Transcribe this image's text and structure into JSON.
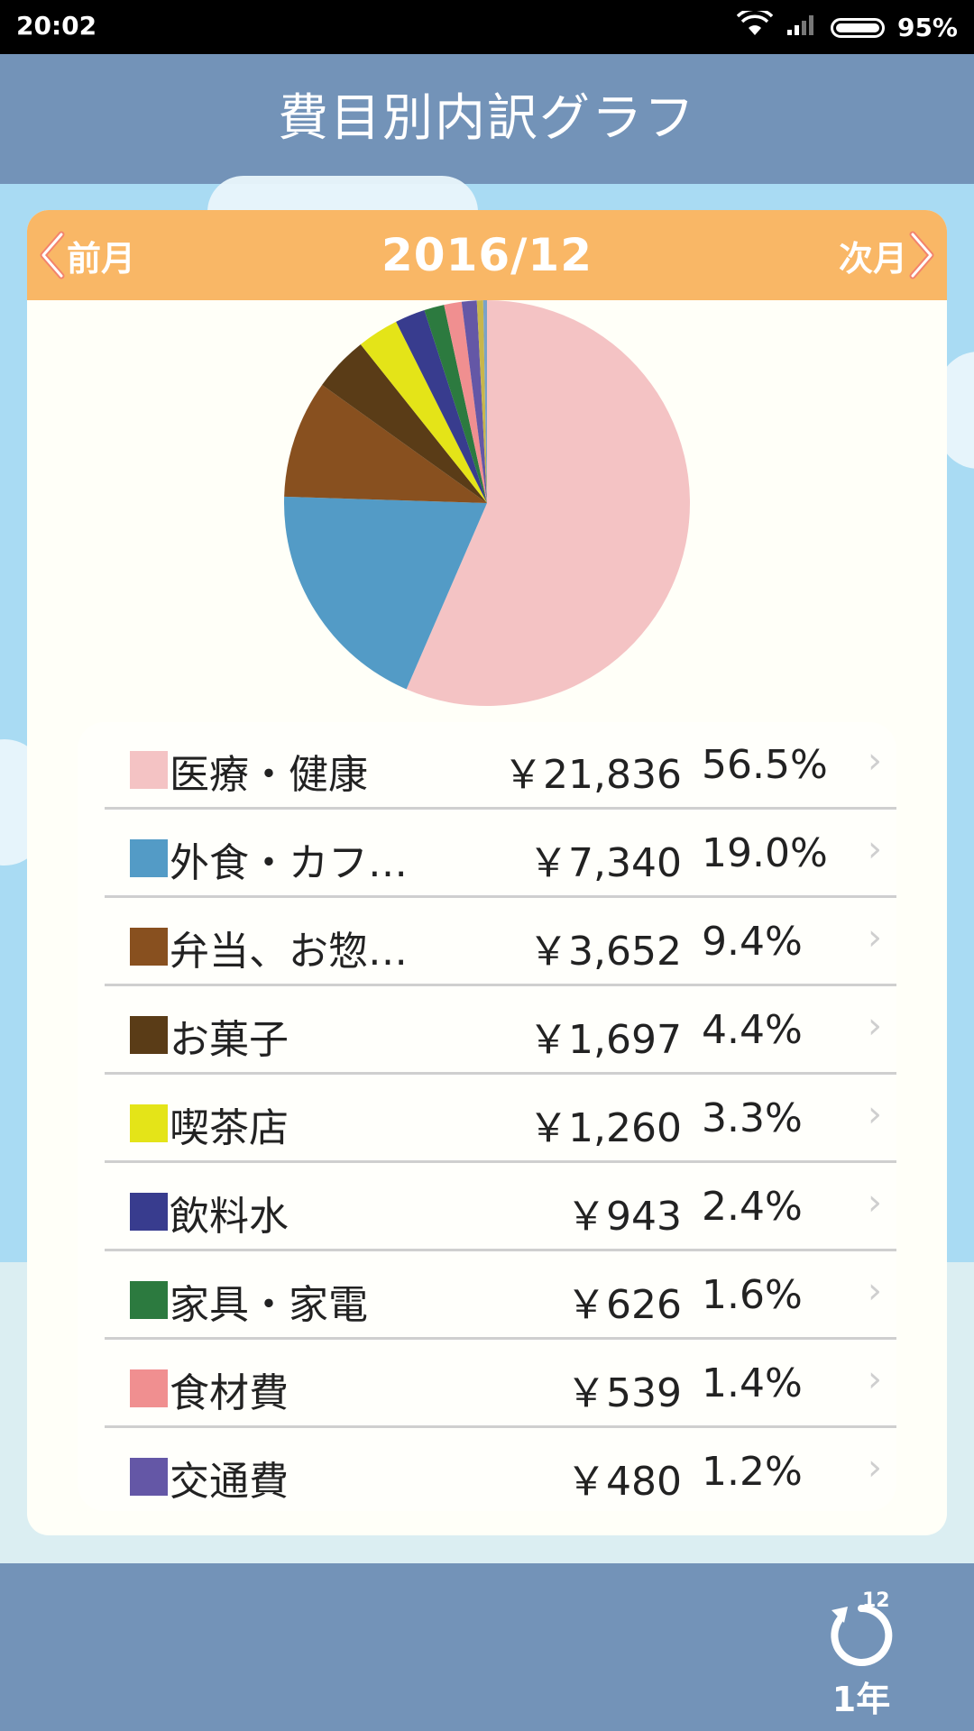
{
  "status": {
    "time": "20:02",
    "battery": "95%"
  },
  "header": {
    "title": "費目別内訳グラフ"
  },
  "nav": {
    "prev_label": "前月",
    "next_label": "次月",
    "current_month": "2016/12"
  },
  "chart_data": {
    "type": "pie",
    "slices": [
      {
        "label": "医療・健康",
        "amount": "￥21,836",
        "percent": 56.5,
        "percent_label": "56.5%",
        "color": "#f4c3c4"
      },
      {
        "label": "外食・カフ…",
        "amount": "￥7,340",
        "percent": 19.0,
        "percent_label": "19.0%",
        "color": "#539bc6"
      },
      {
        "label": "弁当、お惣…",
        "amount": "￥3,652",
        "percent": 9.4,
        "percent_label": "9.4%",
        "color": "#88501f"
      },
      {
        "label": "お菓子",
        "amount": "￥1,697",
        "percent": 4.4,
        "percent_label": "4.4%",
        "color": "#5a3c17"
      },
      {
        "label": "喫茶店",
        "amount": "￥1,260",
        "percent": 3.3,
        "percent_label": "3.3%",
        "color": "#e4e418"
      },
      {
        "label": "飲料水",
        "amount": "￥943",
        "percent": 2.4,
        "percent_label": "2.4%",
        "color": "#383c8e"
      },
      {
        "label": "家具・家電",
        "amount": "￥626",
        "percent": 1.6,
        "percent_label": "1.6%",
        "color": "#2c7a3f"
      },
      {
        "label": "食材費",
        "amount": "￥539",
        "percent": 1.4,
        "percent_label": "1.4%",
        "color": "#f08f90"
      },
      {
        "label": "交通費",
        "amount": "￥480",
        "percent": 1.2,
        "percent_label": "1.2%",
        "color": "#6457a6"
      },
      {
        "label": "",
        "amount": "",
        "percent": 0.5,
        "percent_label": "",
        "color": "#c8b64a"
      },
      {
        "label": "",
        "amount": "",
        "percent": 0.3,
        "percent_label": "",
        "color": "#7aa2c8"
      }
    ]
  },
  "bottom": {
    "year_label": "1年",
    "period_badge": "12"
  }
}
